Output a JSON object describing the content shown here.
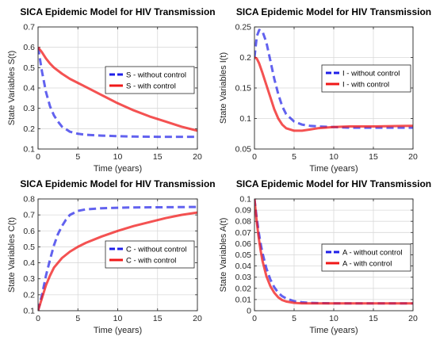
{
  "colors": {
    "without": "#1f1fe8",
    "with": "#f01818",
    "axis": "#262626",
    "grid": "#d9d9d9"
  },
  "chart_data": [
    {
      "type": "line",
      "title": "SICA Epidemic Model for HIV Transmission",
      "xlabel": "Time (years)",
      "ylabel": "State Variables S(t)",
      "xlim": [
        0,
        20
      ],
      "ylim": [
        0.1,
        0.7
      ],
      "xticks": [
        "0",
        "5",
        "10",
        "15",
        "20"
      ],
      "yticks": [
        "0.1",
        "0.2",
        "0.3",
        "0.4",
        "0.5",
        "0.6",
        "0.7"
      ],
      "grid": true,
      "legend_position": "right",
      "series": [
        {
          "name": "S - without control",
          "style": "dashed",
          "x": [
            0,
            0.5,
            1,
            1.5,
            2,
            2.5,
            3,
            4,
            5,
            6,
            8,
            10,
            12,
            15,
            18,
            20
          ],
          "y": [
            0.6,
            0.48,
            0.38,
            0.31,
            0.265,
            0.235,
            0.21,
            0.185,
            0.175,
            0.17,
            0.166,
            0.163,
            0.161,
            0.16,
            0.16,
            0.16
          ]
        },
        {
          "name": "S - with control",
          "style": "solid",
          "x": [
            0,
            0.5,
            1,
            1.5,
            2,
            3,
            4,
            5,
            6,
            8,
            10,
            12,
            14,
            16,
            18,
            20
          ],
          "y": [
            0.6,
            0.575,
            0.545,
            0.52,
            0.5,
            0.47,
            0.445,
            0.425,
            0.405,
            0.365,
            0.325,
            0.29,
            0.26,
            0.235,
            0.21,
            0.19
          ]
        }
      ]
    },
    {
      "type": "line",
      "title": "SICA Epidemic Model for HIV Transmission",
      "xlabel": "Time (years)",
      "ylabel": "State Variables I(t)",
      "xlim": [
        0,
        20
      ],
      "ylim": [
        0.05,
        0.25
      ],
      "xticks": [
        "0",
        "5",
        "10",
        "15",
        "20"
      ],
      "yticks": [
        "0.05",
        "0.1",
        "0.15",
        "0.2",
        "0.25"
      ],
      "grid": true,
      "legend_position": "upper-right",
      "series": [
        {
          "name": "I - without control",
          "style": "dashed",
          "x": [
            0,
            0.3,
            0.6,
            1,
            1.5,
            2,
            2.5,
            3,
            3.5,
            4,
            5,
            6,
            7,
            8,
            10,
            12,
            15,
            20
          ],
          "y": [
            0.2,
            0.235,
            0.245,
            0.243,
            0.225,
            0.195,
            0.165,
            0.14,
            0.12,
            0.107,
            0.095,
            0.09,
            0.088,
            0.087,
            0.086,
            0.085,
            0.085,
            0.085
          ]
        },
        {
          "name": "I - with control",
          "style": "solid",
          "x": [
            0,
            0.3,
            0.6,
            1,
            1.5,
            2,
            2.5,
            3,
            3.5,
            4,
            5,
            6,
            7,
            8,
            10,
            12,
            15,
            20
          ],
          "y": [
            0.2,
            0.198,
            0.19,
            0.175,
            0.155,
            0.135,
            0.115,
            0.1,
            0.09,
            0.084,
            0.08,
            0.08,
            0.082,
            0.084,
            0.086,
            0.087,
            0.087,
            0.088
          ]
        }
      ]
    },
    {
      "type": "line",
      "title": "SICA Epidemic Model for HIV Transmission",
      "xlabel": "Time (years)",
      "ylabel": "State Variables C(t)",
      "xlim": [
        0,
        20
      ],
      "ylim": [
        0.1,
        0.8
      ],
      "xticks": [
        "0",
        "5",
        "10",
        "15",
        "20"
      ],
      "yticks": [
        "0.1",
        "0.2",
        "0.3",
        "0.4",
        "0.5",
        "0.6",
        "0.7",
        "0.8"
      ],
      "grid": true,
      "legend_position": "lower-right",
      "series": [
        {
          "name": "C - without control",
          "style": "dashed",
          "x": [
            0,
            0.5,
            1,
            1.5,
            2,
            2.5,
            3,
            3.5,
            4,
            5,
            6,
            8,
            10,
            12,
            15,
            20
          ],
          "y": [
            0.1,
            0.2,
            0.32,
            0.42,
            0.51,
            0.58,
            0.63,
            0.67,
            0.7,
            0.725,
            0.735,
            0.742,
            0.745,
            0.747,
            0.748,
            0.75
          ]
        },
        {
          "name": "C - with control",
          "style": "solid",
          "x": [
            0,
            0.5,
            1,
            1.5,
            2,
            3,
            4,
            5,
            6,
            8,
            10,
            12,
            14,
            16,
            18,
            20
          ],
          "y": [
            0.1,
            0.18,
            0.26,
            0.32,
            0.37,
            0.43,
            0.47,
            0.5,
            0.525,
            0.565,
            0.6,
            0.63,
            0.655,
            0.68,
            0.7,
            0.715
          ]
        }
      ]
    },
    {
      "type": "line",
      "title": "SICA Epidemic Model for HIV Transmission",
      "xlabel": "Time (years)",
      "ylabel": "State Variables A(t)",
      "xlim": [
        0,
        20
      ],
      "ylim": [
        0,
        0.1
      ],
      "xticks": [
        "0",
        "5",
        "10",
        "15",
        "20"
      ],
      "yticks": [
        "0",
        "0.01",
        "0.02",
        "0.03",
        "0.04",
        "0.05",
        "0.06",
        "0.07",
        "0.08",
        "0.09",
        "0.1"
      ],
      "grid": true,
      "legend_position": "right",
      "series": [
        {
          "name": "A - without control",
          "style": "dashed",
          "x": [
            0,
            0.25,
            0.5,
            0.75,
            1,
            1.5,
            2,
            2.5,
            3,
            3.5,
            4,
            5,
            6,
            7,
            8,
            10,
            12,
            15,
            20
          ],
          "y": [
            0.1,
            0.085,
            0.072,
            0.061,
            0.052,
            0.038,
            0.028,
            0.021,
            0.016,
            0.013,
            0.011,
            0.0085,
            0.0075,
            0.007,
            0.0068,
            0.0066,
            0.0065,
            0.0065,
            0.0065
          ]
        },
        {
          "name": "A - with control",
          "style": "solid",
          "x": [
            0,
            0.25,
            0.5,
            0.75,
            1,
            1.5,
            2,
            2.5,
            3,
            3.5,
            4,
            5,
            6,
            7,
            8,
            10,
            12,
            15,
            20
          ],
          "y": [
            0.1,
            0.082,
            0.067,
            0.055,
            0.045,
            0.031,
            0.022,
            0.016,
            0.012,
            0.0095,
            0.0082,
            0.007,
            0.0066,
            0.0065,
            0.0065,
            0.0065,
            0.0065,
            0.0065,
            0.0065
          ]
        }
      ]
    }
  ]
}
